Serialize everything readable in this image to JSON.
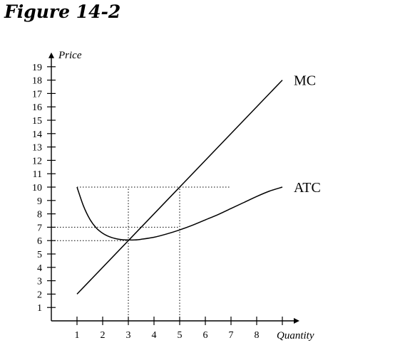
{
  "figure": {
    "title": "Figure 14-2"
  },
  "chart_data": {
    "type": "line",
    "title": "Figure 14-2",
    "xlabel": "Quantity",
    "ylabel": "Price",
    "x_ticks": [
      1,
      2,
      3,
      4,
      5,
      6,
      7,
      8
    ],
    "y_ticks": [
      1,
      2,
      3,
      4,
      5,
      6,
      7,
      8,
      9,
      10,
      11,
      12,
      13,
      14,
      15,
      16,
      17,
      18,
      19
    ],
    "xlim": [
      0,
      9
    ],
    "ylim": [
      0,
      19
    ],
    "grid": false,
    "series": [
      {
        "name": "MC",
        "x": [
          1,
          9
        ],
        "y": [
          2,
          18
        ]
      },
      {
        "name": "ATC",
        "x": [
          1,
          1.25,
          1.5,
          1.75,
          2,
          2.25,
          2.5,
          2.75,
          3,
          3.25,
          3.5,
          4,
          4.5,
          5,
          5.5,
          6,
          6.5,
          7,
          7.5,
          8,
          8.5,
          9
        ],
        "y": [
          10,
          8.6,
          7.6,
          6.95,
          6.55,
          6.3,
          6.15,
          6.07,
          6.05,
          6.05,
          6.1,
          6.25,
          6.5,
          6.8,
          7.15,
          7.55,
          7.95,
          8.4,
          8.85,
          9.3,
          9.7,
          10
        ]
      }
    ],
    "reference_lines": [
      {
        "type": "horizontal",
        "y": 10,
        "x_from": 1,
        "x_to": 7
      },
      {
        "type": "horizontal",
        "y": 7,
        "x_from": 0,
        "x_to": 5
      },
      {
        "type": "horizontal",
        "y": 6,
        "x_from": 0,
        "x_to": 3
      },
      {
        "type": "vertical",
        "x": 3,
        "y_from": 0,
        "y_to": 10
      },
      {
        "type": "vertical",
        "x": 5,
        "y_from": 0,
        "y_to": 10
      }
    ]
  }
}
